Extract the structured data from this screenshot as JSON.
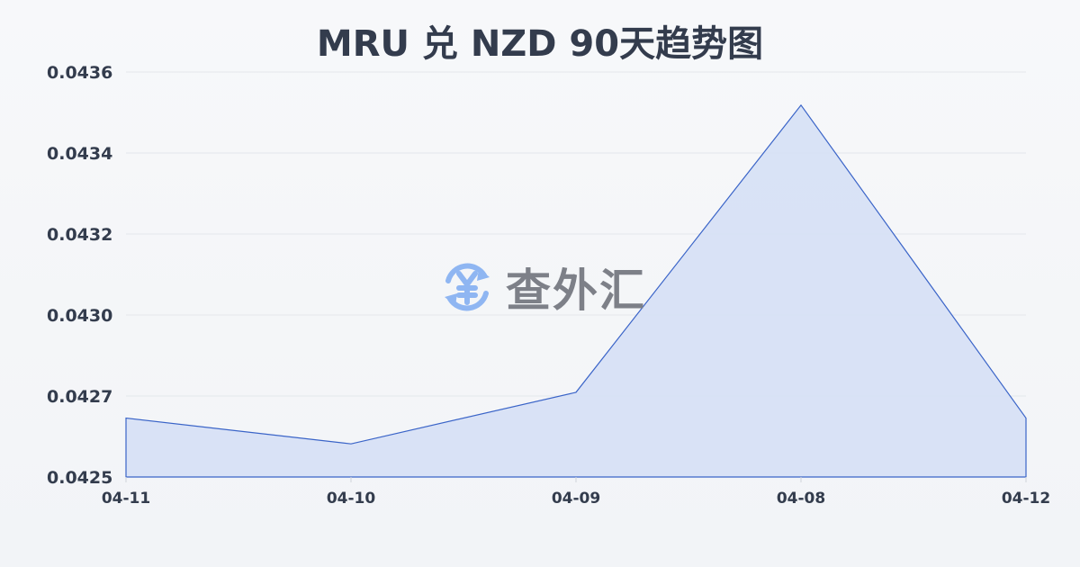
{
  "title": "MRU 兑 NZD 90天趋势图",
  "watermark": {
    "text": "查外汇",
    "icon": "yen-exchange-icon",
    "icon_color": "#8fb6f2"
  },
  "chart_data": {
    "type": "area",
    "title": "MRU 兑 NZD 90天趋势图",
    "categories": [
      "04-11",
      "04-10",
      "04-09",
      "04-08",
      "04-12"
    ],
    "values": [
      0.04266,
      0.04259,
      0.04273,
      0.04351,
      0.04266
    ],
    "ylim": [
      0.0425,
      0.0436
    ],
    "yticks": [
      "0.0425",
      "0.0427",
      "0.0430",
      "0.0432",
      "0.0434",
      "0.0436"
    ],
    "grid": true,
    "line_color": "#3a64c8",
    "fill_color": "#d6e0f5"
  }
}
